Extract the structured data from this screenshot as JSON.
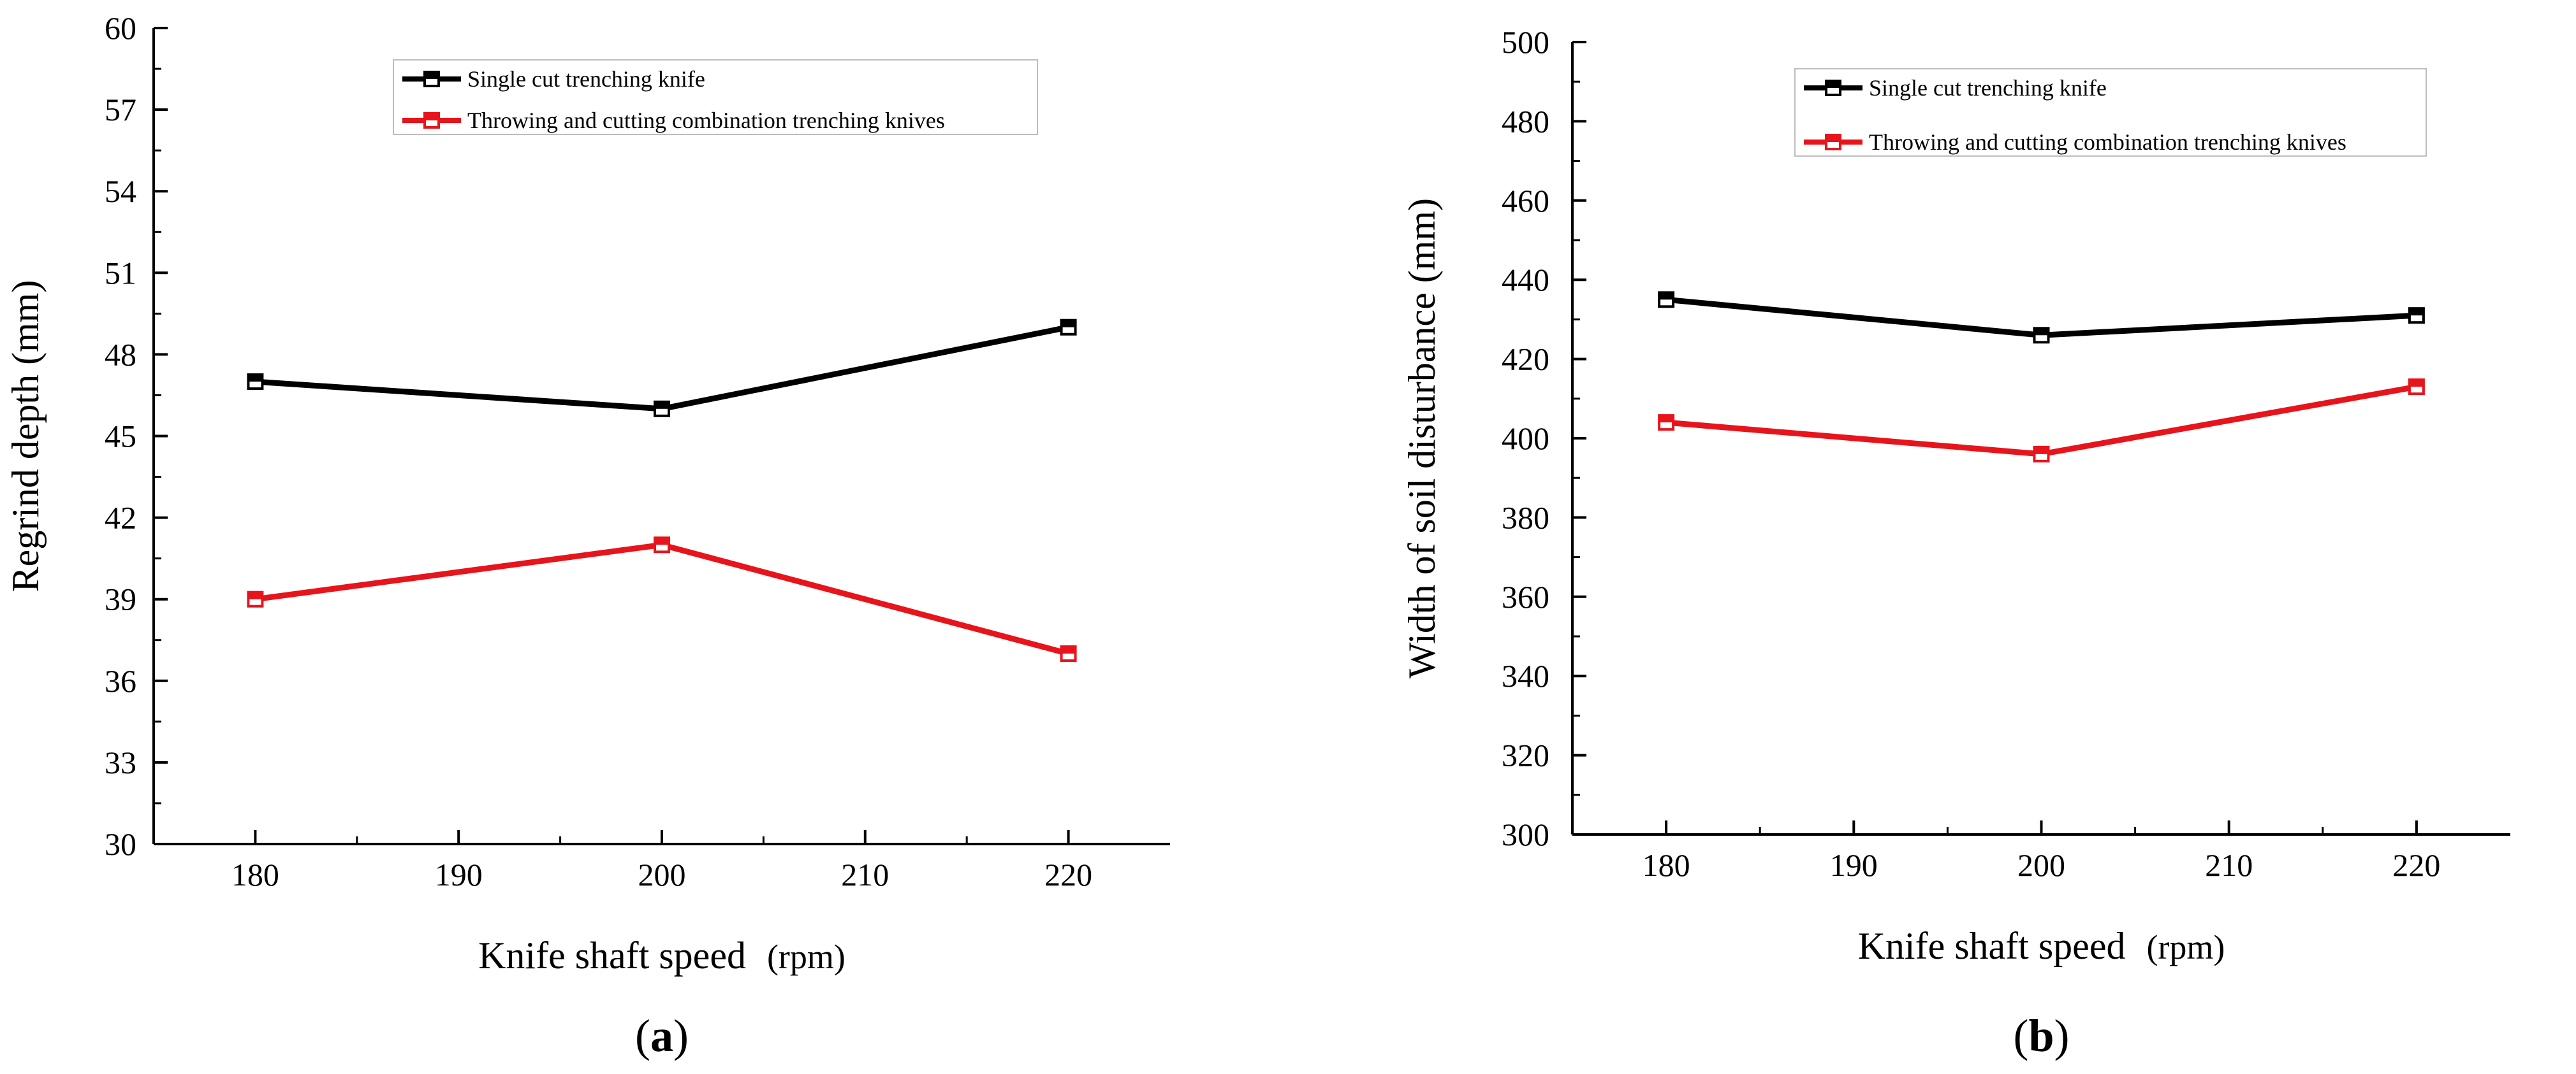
{
  "chart_data": [
    {
      "type": "line",
      "panel_label": "a",
      "x": [
        180,
        200,
        220
      ],
      "xlim": [
        175,
        225
      ],
      "xticks": [
        180,
        190,
        200,
        210,
        220
      ],
      "xtick_labels": [
        "180",
        "190",
        "200",
        "210",
        "220"
      ],
      "xlabel": "Knife shaft speed",
      "xunit": "(rpm)",
      "ylabel": "Regrind depth (mm)",
      "ylim": [
        30,
        60
      ],
      "yticks": [
        30,
        33,
        36,
        39,
        42,
        45,
        48,
        51,
        54,
        57,
        60
      ],
      "ytick_labels": [
        "30",
        "33",
        "36",
        "39",
        "42",
        "45",
        "48",
        "51",
        "54",
        "57",
        "60"
      ],
      "grid": false,
      "legend_position": "top-center",
      "series": [
        {
          "name": "Single cut trenching knife",
          "color": "#000000",
          "values": [
            47,
            46,
            49
          ]
        },
        {
          "name": "Throwing and cutting combination trenching knives",
          "color": "#e8141b",
          "values": [
            39,
            41,
            37
          ]
        }
      ]
    },
    {
      "type": "line",
      "panel_label": "b",
      "x": [
        180,
        200,
        220
      ],
      "xlim": [
        175,
        225
      ],
      "xticks": [
        180,
        190,
        200,
        210,
        220
      ],
      "xtick_labels": [
        "180",
        "190",
        "200",
        "210",
        "220"
      ],
      "xlabel": "Knife shaft speed",
      "xunit": "(rpm)",
      "ylabel": "Width of soil disturbance (mm)",
      "ylim": [
        300,
        500
      ],
      "yticks": [
        300,
        320,
        340,
        360,
        380,
        400,
        420,
        440,
        460,
        480,
        500
      ],
      "ytick_labels": [
        "300",
        "320",
        "340",
        "360",
        "380",
        "400",
        "420",
        "440",
        "460",
        "480",
        "500"
      ],
      "grid": false,
      "legend_position": "top-center",
      "series": [
        {
          "name": "Single cut trenching knife",
          "color": "#000000",
          "values": [
            435,
            426,
            431
          ]
        },
        {
          "name": "Throwing and cutting combination trenching knives",
          "color": "#e8141b",
          "values": [
            404,
            396,
            413
          ]
        }
      ]
    }
  ]
}
